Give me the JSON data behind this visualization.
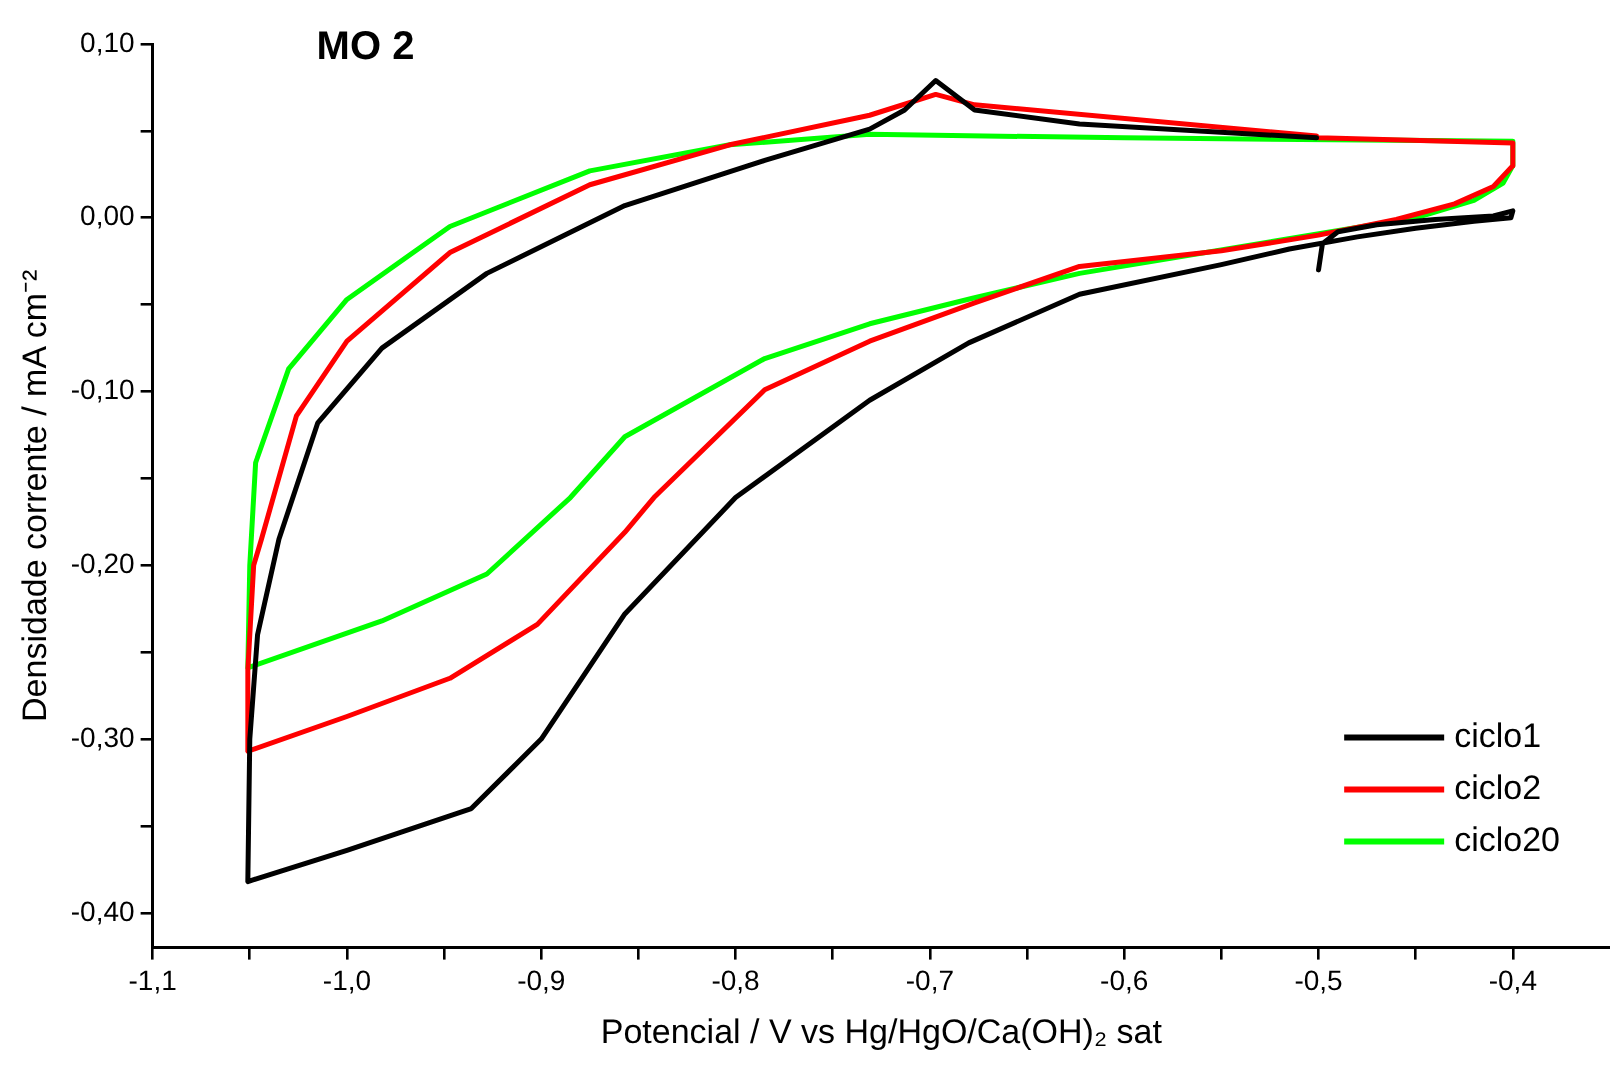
{
  "chart_data": {
    "type": "line",
    "title": "MO 2",
    "xlabel": "Potencial / V vs Hg/HgO/Ca(OH)₂ sat",
    "ylabel": "Densidade corrente / mA cm⁻²",
    "xlim": [
      -1.1,
      -0.35
    ],
    "ylim": [
      -0.42,
      0.1
    ],
    "xticks": [
      {
        "value": -1.1,
        "label": "-1,1"
      },
      {
        "value": -1.05,
        "label": null
      },
      {
        "value": -1.0,
        "label": "-1,0"
      },
      {
        "value": -0.95,
        "label": null
      },
      {
        "value": -0.9,
        "label": "-0,9"
      },
      {
        "value": -0.85,
        "label": null
      },
      {
        "value": -0.8,
        "label": "-0,8"
      },
      {
        "value": -0.75,
        "label": null
      },
      {
        "value": -0.7,
        "label": "-0,7"
      },
      {
        "value": -0.65,
        "label": null
      },
      {
        "value": -0.6,
        "label": "-0,6"
      },
      {
        "value": -0.55,
        "label": null
      },
      {
        "value": -0.5,
        "label": "-0,5"
      },
      {
        "value": -0.45,
        "label": null
      },
      {
        "value": -0.4,
        "label": "-0,4"
      }
    ],
    "yticks": [
      {
        "value": -0.4,
        "label": "-0,40"
      },
      {
        "value": -0.35,
        "label": null
      },
      {
        "value": -0.3,
        "label": "-0,30"
      },
      {
        "value": -0.25,
        "label": null
      },
      {
        "value": -0.2,
        "label": "-0,20"
      },
      {
        "value": -0.15,
        "label": null
      },
      {
        "value": -0.1,
        "label": "-0,10"
      },
      {
        "value": -0.05,
        "label": null
      },
      {
        "value": 0,
        "label": "0,00"
      },
      {
        "value": 0.05,
        "label": null
      },
      {
        "value": 0.1,
        "label": "0,10"
      }
    ],
    "grid": false,
    "legend": "bottom right",
    "marker": "none",
    "line_style": "solid",
    "series": [
      {
        "name": "ciclo1",
        "color": "#000000",
        "x": [
          -0.5,
          -0.498,
          -0.49,
          -0.47,
          -0.44,
          -0.41,
          -0.4,
          -0.401,
          -0.42,
          -0.45,
          -0.48,
          -0.515,
          -0.55,
          -0.623,
          -0.68,
          -0.731,
          -0.8,
          -0.857,
          -0.9,
          -0.936,
          -1.0,
          -1.051,
          -1.05,
          -1.046,
          -1.035,
          -1.015,
          -0.982,
          -0.928,
          -0.857,
          -0.785,
          -0.731,
          -0.713,
          -0.697,
          -0.677,
          -0.623,
          -0.501
        ],
        "values": [
          -0.03,
          -0.015,
          -0.008,
          -0.004,
          -0.001,
          0.001,
          0.004,
          0.0,
          -0.002,
          -0.006,
          -0.011,
          -0.018,
          -0.027,
          -0.044,
          -0.072,
          -0.105,
          -0.161,
          -0.228,
          -0.3,
          -0.34,
          -0.364,
          -0.382,
          -0.3,
          -0.24,
          -0.185,
          -0.118,
          -0.075,
          -0.032,
          0.007,
          0.033,
          0.051,
          0.062,
          0.079,
          0.062,
          0.054,
          0.046
        ]
      },
      {
        "name": "ciclo2",
        "color": "#ff0000",
        "x": [
          -0.5,
          -0.4,
          -0.4,
          -0.41,
          -0.43,
          -0.46,
          -0.5,
          -0.55,
          -0.623,
          -0.677,
          -0.731,
          -0.785,
          -0.842,
          -0.857,
          -0.902,
          -0.947,
          -1.0,
          -1.051,
          -1.051,
          -1.048,
          -1.044,
          -1.026,
          -1.0,
          -0.947,
          -0.875,
          -0.803,
          -0.731,
          -0.697,
          -0.677,
          -0.501
        ],
        "values": [
          0.046,
          0.043,
          0.03,
          0.018,
          0.008,
          -0.001,
          -0.01,
          -0.019,
          -0.028,
          -0.049,
          -0.071,
          -0.099,
          -0.161,
          -0.181,
          -0.234,
          -0.265,
          -0.287,
          -0.307,
          -0.26,
          -0.2,
          -0.185,
          -0.114,
          -0.071,
          -0.02,
          0.019,
          0.042,
          0.059,
          0.071,
          0.065,
          0.047
        ]
      },
      {
        "name": "ciclo20",
        "color": "#00ff00",
        "x": [
          -0.5,
          -0.4,
          -0.4,
          -0.405,
          -0.42,
          -0.45,
          -0.623,
          -0.677,
          -0.731,
          -0.785,
          -0.857,
          -0.885,
          -0.928,
          -0.982,
          -1.051,
          -1.05,
          -1.047,
          -1.03,
          -1.0,
          -0.947,
          -0.875,
          -0.803,
          -0.731,
          -0.6,
          -0.4
        ],
        "values": [
          0.045,
          0.044,
          0.03,
          0.02,
          0.01,
          0.0,
          -0.032,
          -0.046,
          -0.061,
          -0.081,
          -0.126,
          -0.161,
          -0.205,
          -0.232,
          -0.259,
          -0.2,
          -0.141,
          -0.087,
          -0.047,
          -0.005,
          0.027,
          0.042,
          0.048,
          0.046,
          0.044
        ]
      }
    ]
  }
}
